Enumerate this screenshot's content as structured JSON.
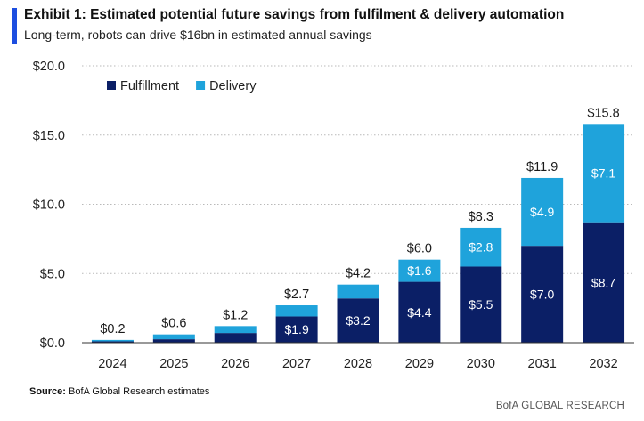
{
  "header": {
    "title": "Exhibit 1: Estimated potential future savings from fulfilment & delivery automation",
    "subtitle": "Long-term, robots can drive $16bn in estimated annual savings"
  },
  "footer": {
    "source_label": "Source:",
    "source_text": " BofA Global Research estimates",
    "brand": "BofA GLOBAL RESEARCH"
  },
  "colors": {
    "accent": "#1d4ee0",
    "fulfillment": "#0b1f66",
    "delivery": "#1fa3db"
  },
  "chart_data": {
    "type": "bar",
    "stacked": true,
    "categories": [
      "2024",
      "2025",
      "2026",
      "2027",
      "2028",
      "2029",
      "2030",
      "2031",
      "2032"
    ],
    "series": [
      {
        "name": "Fulfillment",
        "color": "#0b1f66",
        "values": [
          0.1,
          0.25,
          0.7,
          1.9,
          3.2,
          4.4,
          5.5,
          7.0,
          8.7
        ],
        "labels": [
          "",
          "",
          "",
          "$1.9",
          "$3.2",
          "$4.4",
          "$5.5",
          "$7.0",
          "$8.7"
        ]
      },
      {
        "name": "Delivery",
        "color": "#1fa3db",
        "values": [
          0.1,
          0.35,
          0.5,
          0.8,
          1.0,
          1.6,
          2.8,
          4.9,
          7.1
        ],
        "labels": [
          "",
          "",
          "",
          "",
          "",
          "$1.6",
          "$2.8",
          "$4.9",
          "$7.1"
        ]
      }
    ],
    "totals": [
      "$0.2",
      "$0.6",
      "$1.2",
      "$2.7",
      "$4.2",
      "$6.0",
      "$8.3",
      "$11.9",
      "$15.8"
    ],
    "ylim": [
      0,
      20
    ],
    "yticks": [
      0,
      5,
      10,
      15,
      20
    ],
    "ytick_labels": [
      "$0.0",
      "$5.0",
      "$10.0",
      "$15.0",
      "$20.0"
    ],
    "grid": true,
    "legend_position": "top-left"
  }
}
